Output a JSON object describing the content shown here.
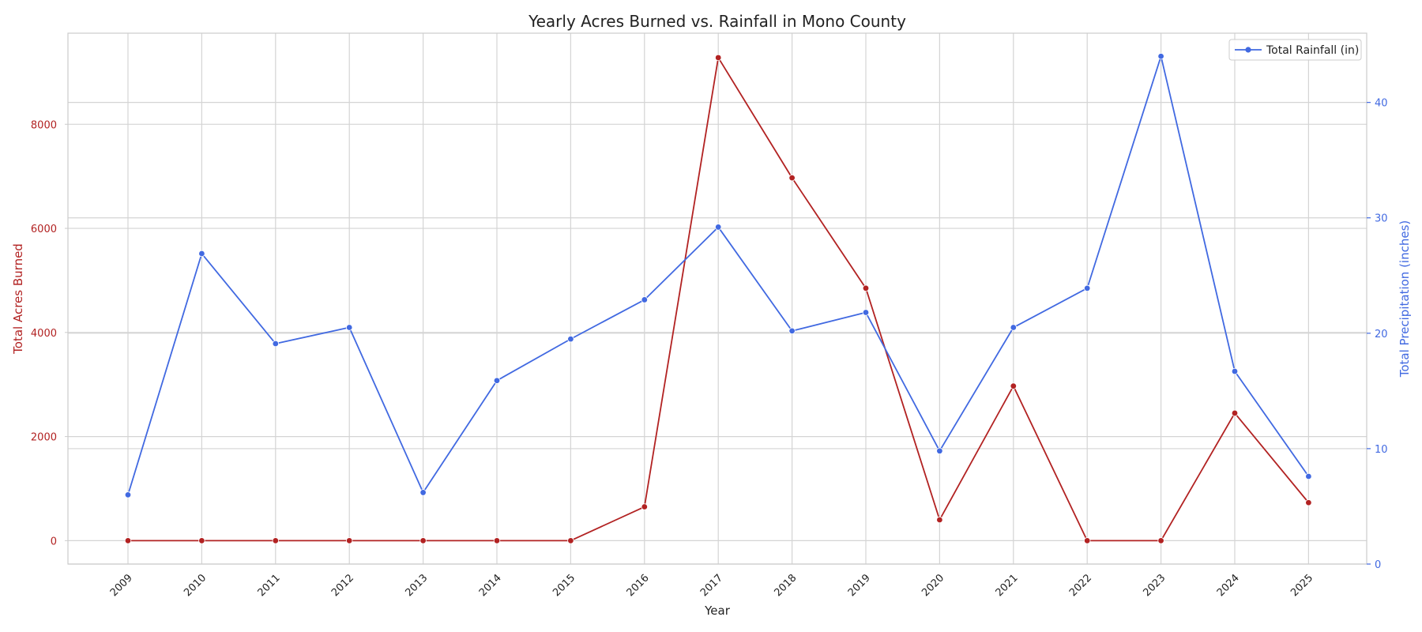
{
  "colors": {
    "acres": "#b22222",
    "rainfall": "#4169e1",
    "grid": "#d4d4d4",
    "frame": "#cccccc",
    "text": "#222222"
  },
  "chart_data": {
    "type": "line",
    "title": "Yearly Acres Burned vs. Rainfall in Mono County",
    "xlabel": "Year",
    "ylabel_left": "Total Acres Burned",
    "ylabel_right": "Total Precipitation (inches)",
    "x": [
      "2009",
      "2010",
      "2011",
      "2012",
      "2013",
      "2014",
      "2015",
      "2016",
      "2017",
      "2018",
      "2019",
      "2020",
      "2021",
      "2022",
      "2023",
      "2024",
      "2025"
    ],
    "ylim_left": [
      -450,
      9750
    ],
    "ylim_right": [
      0,
      46
    ],
    "yticks_left": [
      0,
      2000,
      4000,
      6000,
      8000
    ],
    "yticks_right": [
      0,
      10,
      20,
      30,
      40
    ],
    "grid": true,
    "legend_position": "top-right",
    "series": [
      {
        "axis": "left",
        "color": "#b22222",
        "values": [
          0,
          0,
          0,
          0,
          0,
          0,
          0,
          650,
          9280,
          6970,
          4850,
          400,
          2970,
          0,
          0,
          2450,
          730
        ]
      },
      {
        "name": "Total Rainfall (in)",
        "axis": "right",
        "color": "#4169e1",
        "values": [
          6.0,
          26.9,
          19.1,
          20.5,
          6.2,
          15.9,
          19.5,
          22.9,
          29.2,
          20.2,
          21.8,
          9.8,
          20.5,
          23.9,
          44.0,
          16.7,
          7.6
        ]
      }
    ]
  }
}
